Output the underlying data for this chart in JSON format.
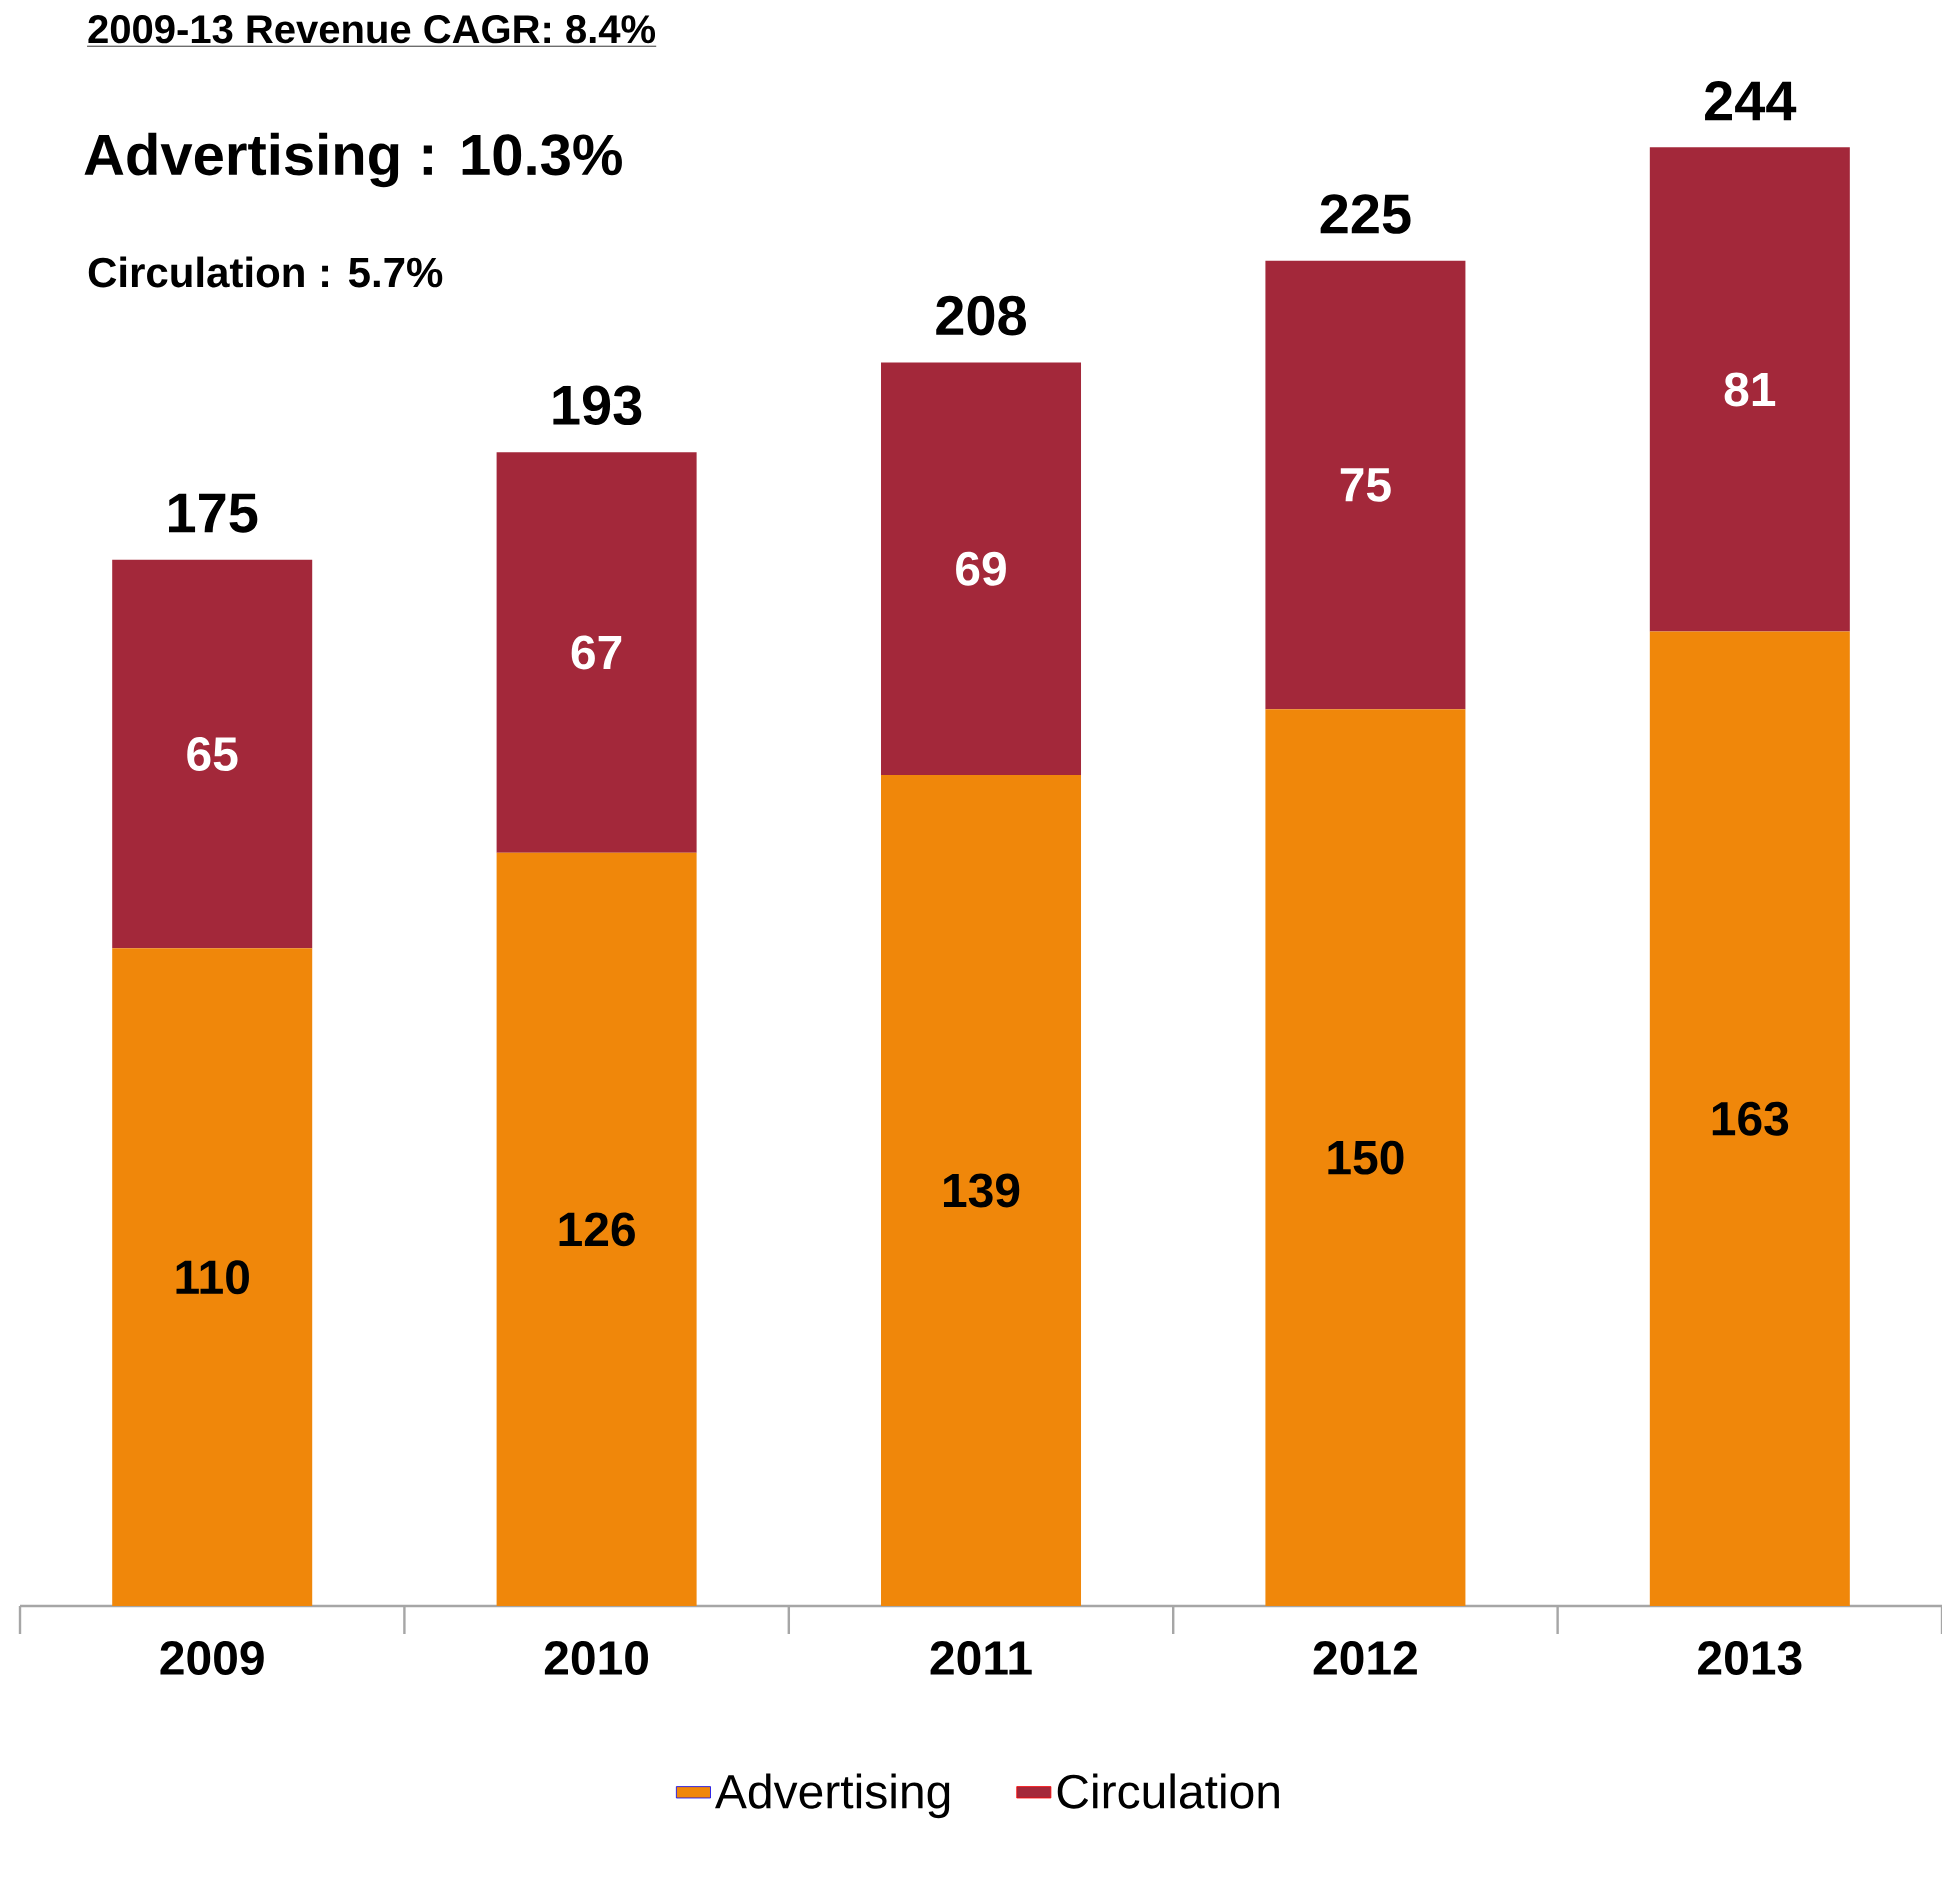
{
  "chart_data": {
    "type": "bar",
    "title": "2009-13 Revenue CAGR: 8.4%",
    "annotations": [
      "Advertising : 10.3%",
      "Circulation : 5.7%"
    ],
    "categories": [
      "2009",
      "2010",
      "2011",
      "2012",
      "2013"
    ],
    "stacked": true,
    "series": [
      {
        "name": "Advertising",
        "color": "#f0870a",
        "values": [
          110,
          126,
          139,
          150,
          163
        ]
      },
      {
        "name": "Circulation",
        "color": "#a3283a",
        "values": [
          65,
          67,
          69,
          75,
          81
        ]
      }
    ],
    "totals": [
      "175",
      "193",
      "208",
      "225",
      "244"
    ],
    "data_labels": true,
    "legend": "bottom"
  }
}
